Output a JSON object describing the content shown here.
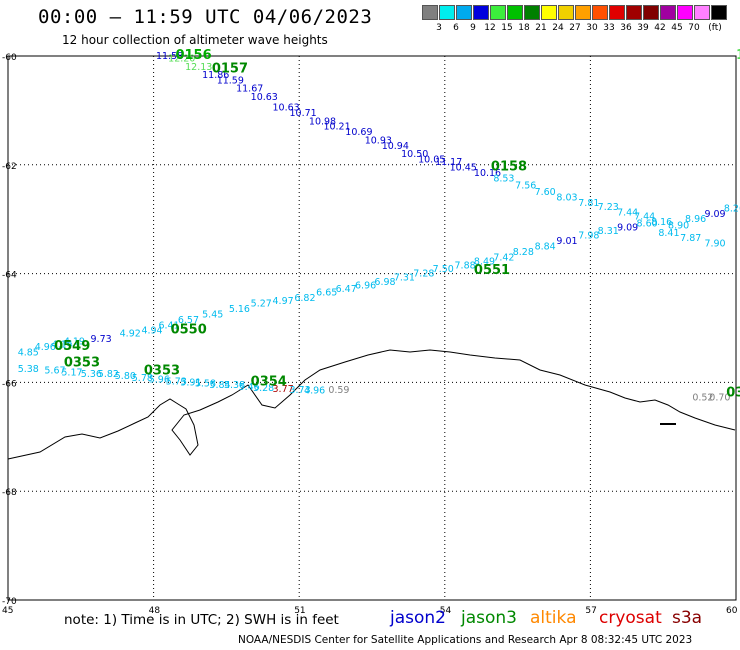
{
  "header": {
    "title": "00:00 – 11:59 UTC 04/06/2023",
    "subtitle": "12 hour collection of altimeter wave heights"
  },
  "legend": {
    "colors": [
      "#808080",
      "#00eeee",
      "#00aaee",
      "#0000dd",
      "#3cee3c",
      "#00c000",
      "#008000",
      "#ffff00",
      "#f0d000",
      "#ffa000",
      "#ff5000",
      "#e00000",
      "#a00000",
      "#800000",
      "#a000a0",
      "#ff00ff",
      "#ff80ff",
      "#000000"
    ],
    "labels": [
      "3",
      "6",
      "9",
      "12",
      "15",
      "18",
      "21",
      "24",
      "27",
      "30",
      "33",
      "36",
      "39",
      "42",
      "45",
      "70",
      "(ft)"
    ]
  },
  "axes": {
    "y_labels": [
      "-60",
      "-62",
      "-64",
      "-66",
      "-68",
      "-70"
    ],
    "x_labels": [
      "45",
      "48",
      "51",
      "54",
      "57",
      "60"
    ]
  },
  "tracks": [
    {
      "color": "#0000cc",
      "labels": [
        {
          "t": "11.58",
          "c": "#0000cc",
          "x": 48.05,
          "y": -60.0
        },
        {
          "t": "12.20",
          "c": "#55dd55",
          "x": 48.3,
          "y": -60.05
        },
        {
          "t": "12.13",
          "c": "#55dd55",
          "x": 48.65,
          "y": -60.2
        },
        {
          "t": "11.86",
          "c": "#0000cc",
          "x": 49.0,
          "y": -60.35
        },
        {
          "t": "11.59",
          "c": "#0000cc",
          "x": 49.3,
          "y": -60.45
        },
        {
          "t": "11.67",
          "c": "#0000cc",
          "x": 49.7,
          "y": -60.6
        },
        {
          "t": "10.63",
          "c": "#0000cc",
          "x": 50.0,
          "y": -60.75
        },
        {
          "t": "10.63",
          "c": "#0000cc",
          "x": 50.45,
          "y": -60.95
        },
        {
          "t": "10.71",
          "c": "#0000cc",
          "x": 50.8,
          "y": -61.05
        },
        {
          "t": "10.98",
          "c": "#0000cc",
          "x": 51.2,
          "y": -61.2
        },
        {
          "t": "10.21",
          "c": "#0000cc",
          "x": 51.5,
          "y": -61.3
        },
        {
          "t": "10.69",
          "c": "#0000cc",
          "x": 51.95,
          "y": -61.4
        },
        {
          "t": "10.93",
          "c": "#0000cc",
          "x": 52.35,
          "y": -61.55
        },
        {
          "t": "10.94",
          "c": "#0000cc",
          "x": 52.7,
          "y": -61.65
        },
        {
          "t": "10.50",
          "c": "#0000cc",
          "x": 53.1,
          "y": -61.8
        },
        {
          "t": "10.05",
          "c": "#0000cc",
          "x": 53.45,
          "y": -61.9
        },
        {
          "t": "11.17",
          "c": "#0000cc",
          "x": 53.8,
          "y": -61.95
        },
        {
          "t": "10.45",
          "c": "#0000cc",
          "x": 54.1,
          "y": -62.05
        },
        {
          "t": "10.16",
          "c": "#0000cc",
          "x": 54.6,
          "y": -62.15
        },
        {
          "t": "8.53",
          "c": "#00bbee",
          "x": 55.0,
          "y": -62.25
        },
        {
          "t": "7.56",
          "c": "#00bbee",
          "x": 55.45,
          "y": -62.38
        },
        {
          "t": "7.60",
          "c": "#00bbee",
          "x": 55.85,
          "y": -62.5
        },
        {
          "t": "8.03",
          "c": "#00bbee",
          "x": 56.3,
          "y": -62.6
        },
        {
          "t": "7.81",
          "c": "#00bbee",
          "x": 56.75,
          "y": -62.7
        },
        {
          "t": "7.23",
          "c": "#00bbee",
          "x": 57.15,
          "y": -62.78
        },
        {
          "t": "7.44",
          "c": "#00bbee",
          "x": 57.55,
          "y": -62.88
        },
        {
          "t": "7.44",
          "c": "#00bbee",
          "x": 57.9,
          "y": -62.95
        },
        {
          "t": "8.16",
          "c": "#00bbee",
          "x": 58.25,
          "y": -63.05
        },
        {
          "t": "8.90",
          "c": "#00bbee",
          "x": 58.6,
          "y": -63.12
        },
        {
          "t": "8.96",
          "c": "#00bbee",
          "x": 58.95,
          "y": -63.0
        },
        {
          "t": "9.09",
          "c": "#0000cc",
          "x": 59.35,
          "y": -62.9
        },
        {
          "t": "8.26",
          "c": "#00bbee",
          "x": 59.75,
          "y": -62.8
        },
        {
          "t": "8.9",
          "c": "#00bbee",
          "x": 60.1,
          "y": -62.7
        }
      ]
    },
    {
      "color": "#00bbee",
      "labels": [
        {
          "t": "4.85",
          "c": "#00bbee",
          "x": 45.2,
          "y": -65.45
        },
        {
          "t": "4.96",
          "c": "#00bbee",
          "x": 45.55,
          "y": -65.35
        },
        {
          "t": "4.14",
          "c": "#00bbee",
          "x": 45.9,
          "y": -65.3
        },
        {
          "t": "4.19",
          "c": "#00bbee",
          "x": 46.15,
          "y": -65.25
        },
        {
          "t": "9.73",
          "c": "#0000cc",
          "x": 46.7,
          "y": -65.2
        },
        {
          "t": "4.92",
          "c": "#00bbee",
          "x": 47.3,
          "y": -65.1
        },
        {
          "t": "4.94",
          "c": "#00bbee",
          "x": 47.75,
          "y": -65.05
        },
        {
          "t": "6.41",
          "c": "#00bbee",
          "x": 48.1,
          "y": -64.95
        },
        {
          "t": "6.57",
          "c": "#00bbee",
          "x": 48.5,
          "y": -64.85
        },
        {
          "t": "5.45",
          "c": "#00bbee",
          "x": 49.0,
          "y": -64.75
        },
        {
          "t": "5.16",
          "c": "#00bbee",
          "x": 49.55,
          "y": -64.65
        },
        {
          "t": "5.27",
          "c": "#00bbee",
          "x": 50.0,
          "y": -64.55
        },
        {
          "t": "4.97",
          "c": "#00bbee",
          "x": 50.45,
          "y": -64.5
        },
        {
          "t": "6.82",
          "c": "#00bbee",
          "x": 50.9,
          "y": -64.45
        },
        {
          "t": "6.65",
          "c": "#00bbee",
          "x": 51.35,
          "y": -64.35
        },
        {
          "t": "6.47",
          "c": "#00bbee",
          "x": 51.75,
          "y": -64.28
        },
        {
          "t": "6.96",
          "c": "#00bbee",
          "x": 52.15,
          "y": -64.22
        },
        {
          "t": "6.98",
          "c": "#00bbee",
          "x": 52.55,
          "y": -64.15
        },
        {
          "t": "7.31",
          "c": "#00bbee",
          "x": 52.95,
          "y": -64.07
        },
        {
          "t": "7.28",
          "c": "#00bbee",
          "x": 53.35,
          "y": -64.0
        },
        {
          "t": "7.50",
          "c": "#00bbee",
          "x": 53.75,
          "y": -63.92
        },
        {
          "t": "7.88",
          "c": "#00bbee",
          "x": 54.2,
          "y": -63.85
        },
        {
          "t": "8.49",
          "c": "#00bbee",
          "x": 54.6,
          "y": -63.78
        },
        {
          "t": "7.42",
          "c": "#00bbee",
          "x": 55.0,
          "y": -63.7
        },
        {
          "t": "8.28",
          "c": "#00bbee",
          "x": 55.4,
          "y": -63.6
        },
        {
          "t": "8.84",
          "c": "#00bbee",
          "x": 55.85,
          "y": -63.5
        },
        {
          "t": "9.01",
          "c": "#0000cc",
          "x": 56.3,
          "y": -63.4
        },
        {
          "t": "7.98",
          "c": "#00bbee",
          "x": 56.75,
          "y": -63.3
        },
        {
          "t": "8.31",
          "c": "#00bbee",
          "x": 57.15,
          "y": -63.22
        },
        {
          "t": "9.09",
          "c": "#0000cc",
          "x": 57.55,
          "y": -63.15
        },
        {
          "t": "8.60",
          "c": "#00bbee",
          "x": 57.95,
          "y": -63.08
        },
        {
          "t": "8.41",
          "c": "#00bbee",
          "x": 58.4,
          "y": -63.25
        },
        {
          "t": "7.87",
          "c": "#00bbee",
          "x": 58.85,
          "y": -63.35
        },
        {
          "t": "7.90",
          "c": "#00bbee",
          "x": 59.35,
          "y": -63.45
        }
      ]
    },
    {
      "color": "#00bbee",
      "labels": [
        {
          "t": "5.38",
          "c": "#00bbee",
          "x": 45.2,
          "y": -65.75
        },
        {
          "t": "5.67",
          "c": "#00bbee",
          "x": 45.75,
          "y": -65.78
        },
        {
          "t": "5.17",
          "c": "#00bbee",
          "x": 46.1,
          "y": -65.82
        },
        {
          "t": "5.36",
          "c": "#00bbee",
          "x": 46.5,
          "y": -65.85
        },
        {
          "t": "5.82",
          "c": "#00bbee",
          "x": 46.85,
          "y": -65.85
        },
        {
          "t": "5.80",
          "c": "#00bbee",
          "x": 47.2,
          "y": -65.88
        },
        {
          "t": "5.78",
          "c": "#00bbee",
          "x": 47.55,
          "y": -65.92
        },
        {
          "t": "5.96",
          "c": "#00bbee",
          "x": 47.9,
          "y": -65.95
        },
        {
          "t": "5.73",
          "c": "#00bbee",
          "x": 48.25,
          "y": -65.98
        },
        {
          "t": "5.91",
          "c": "#00bbee",
          "x": 48.55,
          "y": -66.0
        },
        {
          "t": "5.58",
          "c": "#00bbee",
          "x": 48.85,
          "y": -66.02
        },
        {
          "t": "5.84",
          "c": "#00bbee",
          "x": 49.15,
          "y": -66.05
        },
        {
          "t": "5.38",
          "c": "#00bbee",
          "x": 49.45,
          "y": -66.05
        },
        {
          "t": "5.46",
          "c": "#00bbee",
          "x": 49.75,
          "y": -66.08
        },
        {
          "t": "5.28",
          "c": "#00bbee",
          "x": 50.05,
          "y": -66.1
        },
        {
          "t": "3.77",
          "c": "#aa0000",
          "x": 50.45,
          "y": -66.12
        },
        {
          "t": "3.73",
          "c": "#00bbee",
          "x": 50.8,
          "y": -66.14
        },
        {
          "t": "4.96",
          "c": "#00bbee",
          "x": 51.1,
          "y": -66.15
        },
        {
          "t": "0.59",
          "c": "#808080",
          "x": 51.6,
          "y": -66.14
        },
        {
          "t": "0.52",
          "c": "#808080",
          "x": 59.1,
          "y": -66.28
        },
        {
          "t": "0.70",
          "c": "#808080",
          "x": 59.45,
          "y": -66.28
        }
      ]
    }
  ],
  "passes": [
    {
      "t": "0156",
      "c": "#00aa00",
      "x": 48.45,
      "y": -60.0
    },
    {
      "t": "0157",
      "c": "#008800",
      "x": 49.2,
      "y": -60.25
    },
    {
      "t": "0158",
      "c": "#008800",
      "x": 54.95,
      "y": -62.05
    },
    {
      "t": "0551",
      "c": "#008800",
      "x": 54.6,
      "y": -63.95
    },
    {
      "t": "0550",
      "c": "#008800",
      "x": 48.35,
      "y": -65.05
    },
    {
      "t": "0549",
      "c": "#008800",
      "x": 45.95,
      "y": -65.35
    },
    {
      "t": "0353",
      "c": "#008800",
      "x": 46.15,
      "y": -65.65
    },
    {
      "t": "0353",
      "c": "#008800",
      "x": 47.8,
      "y": -65.8
    },
    {
      "t": "0354",
      "c": "#008800",
      "x": 50.0,
      "y": -66.0
    },
    {
      "t": "03",
      "c": "#008800",
      "x": 59.8,
      "y": -66.2
    },
    {
      "t": "1",
      "c": "#55dd55",
      "x": 60.0,
      "y": -60.0
    }
  ],
  "footer": {
    "note": "note:  1) Time is in UTC;  2) SWH is in feet",
    "missions": [
      {
        "name": "jason2",
        "color": "#0000cc"
      },
      {
        "name": "jason3",
        "color": "#008800"
      },
      {
        "name": "altika",
        "color": "#ff8800"
      },
      {
        "name": "cryosat",
        "color": "#dd0000"
      },
      {
        "name": "s3a",
        "color": "#880000"
      }
    ],
    "credit": "NOAA/NESDIS Center for Satellite Applications and Research   Apr  8 08:32:45 UTC 2023"
  }
}
